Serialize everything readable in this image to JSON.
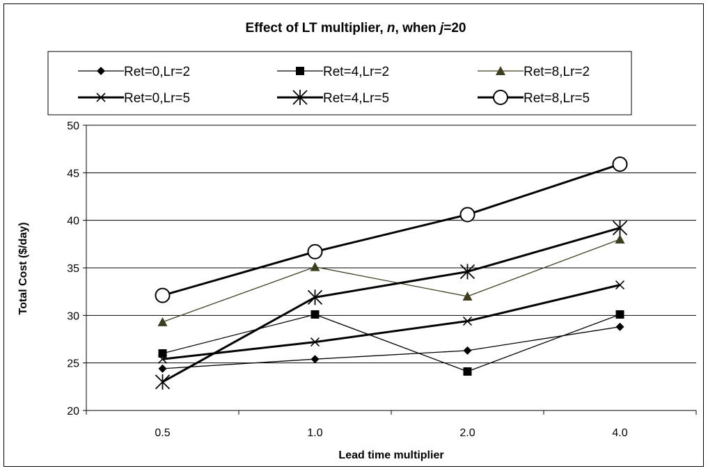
{
  "chart_data": {
    "type": "line",
    "title_main": "Effect of LT multiplier, ",
    "title_var1": "n",
    "title_mid": ", when ",
    "title_var2": "j",
    "title_end": "=20",
    "xlabel": "Lead time multiplier",
    "ylabel": "Total Cost ($/day)",
    "categories": [
      "0.5",
      "1.0",
      "2.0",
      "4.0"
    ],
    "ylim": [
      20,
      50
    ],
    "yticks": [
      20,
      25,
      30,
      35,
      40,
      45,
      50
    ],
    "grid": "horizontal",
    "legend_placement": "top",
    "series": [
      {
        "name": "Ret=0,Lr=2",
        "values": [
          24.4,
          25.4,
          26.3,
          28.8
        ],
        "marker": "diamond",
        "color": "#000000",
        "weight": "thin"
      },
      {
        "name": "Ret=4,Lr=2",
        "values": [
          26.0,
          30.1,
          24.1,
          30.1
        ],
        "marker": "square",
        "color": "#000000",
        "weight": "thin"
      },
      {
        "name": "Ret=8,Lr=2",
        "values": [
          29.3,
          35.1,
          32.0,
          38.0
        ],
        "marker": "triangle",
        "color": "#3d3d1f",
        "weight": "thin"
      },
      {
        "name": "Ret=0,Lr=5",
        "values": [
          25.4,
          27.2,
          29.4,
          33.2
        ],
        "marker": "x",
        "color": "#000000",
        "weight": "thick"
      },
      {
        "name": "Ret=4,Lr=5",
        "values": [
          23.0,
          31.9,
          34.6,
          39.2
        ],
        "marker": "star",
        "color": "#000000",
        "weight": "thick"
      },
      {
        "name": "Ret=8,Lr=5",
        "values": [
          32.1,
          36.7,
          40.6,
          45.9
        ],
        "marker": "circle",
        "color": "#000000",
        "weight": "thick"
      }
    ]
  }
}
